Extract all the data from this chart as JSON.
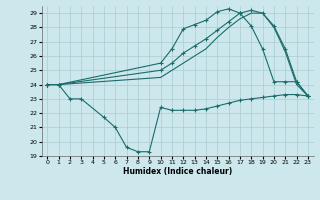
{
  "xlabel": "Humidex (Indice chaleur)",
  "ylabel": "",
  "xlim": [
    -0.5,
    23.5
  ],
  "ylim": [
    19,
    29.5
  ],
  "yticks": [
    19,
    20,
    21,
    22,
    23,
    24,
    25,
    26,
    27,
    28,
    29
  ],
  "xticks": [
    0,
    1,
    2,
    3,
    4,
    5,
    6,
    7,
    8,
    9,
    10,
    11,
    12,
    13,
    14,
    15,
    16,
    17,
    18,
    19,
    20,
    21,
    22,
    23
  ],
  "background_color": "#cce8ec",
  "grid_color": "#aaccd4",
  "line_color": "#1a6b6b",
  "series": [
    {
      "x": [
        0,
        1,
        2,
        3,
        5,
        6,
        7,
        8,
        9,
        10,
        11,
        12,
        13,
        14,
        15,
        16,
        17,
        18,
        19,
        20,
        21,
        22,
        23
      ],
      "y": [
        24,
        24,
        23,
        23,
        21.7,
        21.0,
        19.6,
        19.3,
        19.3,
        22.4,
        22.2,
        22.2,
        22.2,
        22.3,
        22.5,
        22.7,
        22.9,
        23.0,
        23.1,
        23.2,
        23.3,
        23.3,
        23.2
      ],
      "marker": true
    },
    {
      "x": [
        0,
        1,
        10,
        11,
        12,
        13,
        14,
        15,
        16,
        17,
        18,
        19,
        20,
        21,
        22,
        23
      ],
      "y": [
        24,
        24,
        25.5,
        26.5,
        27.9,
        28.2,
        28.5,
        29.1,
        29.3,
        29.0,
        28.1,
        26.5,
        24.2,
        24.2,
        24.2,
        23.2
      ],
      "marker": true
    },
    {
      "x": [
        0,
        1,
        10,
        11,
        12,
        13,
        14,
        15,
        16,
        17,
        18,
        19,
        20,
        21,
        22,
        23
      ],
      "y": [
        24,
        24,
        25.0,
        25.5,
        26.2,
        26.7,
        27.2,
        27.8,
        28.4,
        29.0,
        29.2,
        29.0,
        28.1,
        26.5,
        24.2,
        23.2
      ],
      "marker": true
    },
    {
      "x": [
        0,
        1,
        10,
        11,
        12,
        13,
        14,
        15,
        16,
        17,
        18,
        19,
        20,
        21,
        22,
        23
      ],
      "y": [
        24,
        24,
        24.5,
        25.0,
        25.5,
        26.0,
        26.5,
        27.3,
        28.0,
        28.6,
        29.0,
        29.0,
        28.0,
        26.3,
        24.0,
        23.2
      ],
      "marker": false
    }
  ],
  "figsize": [
    3.2,
    2.0
  ],
  "dpi": 100
}
